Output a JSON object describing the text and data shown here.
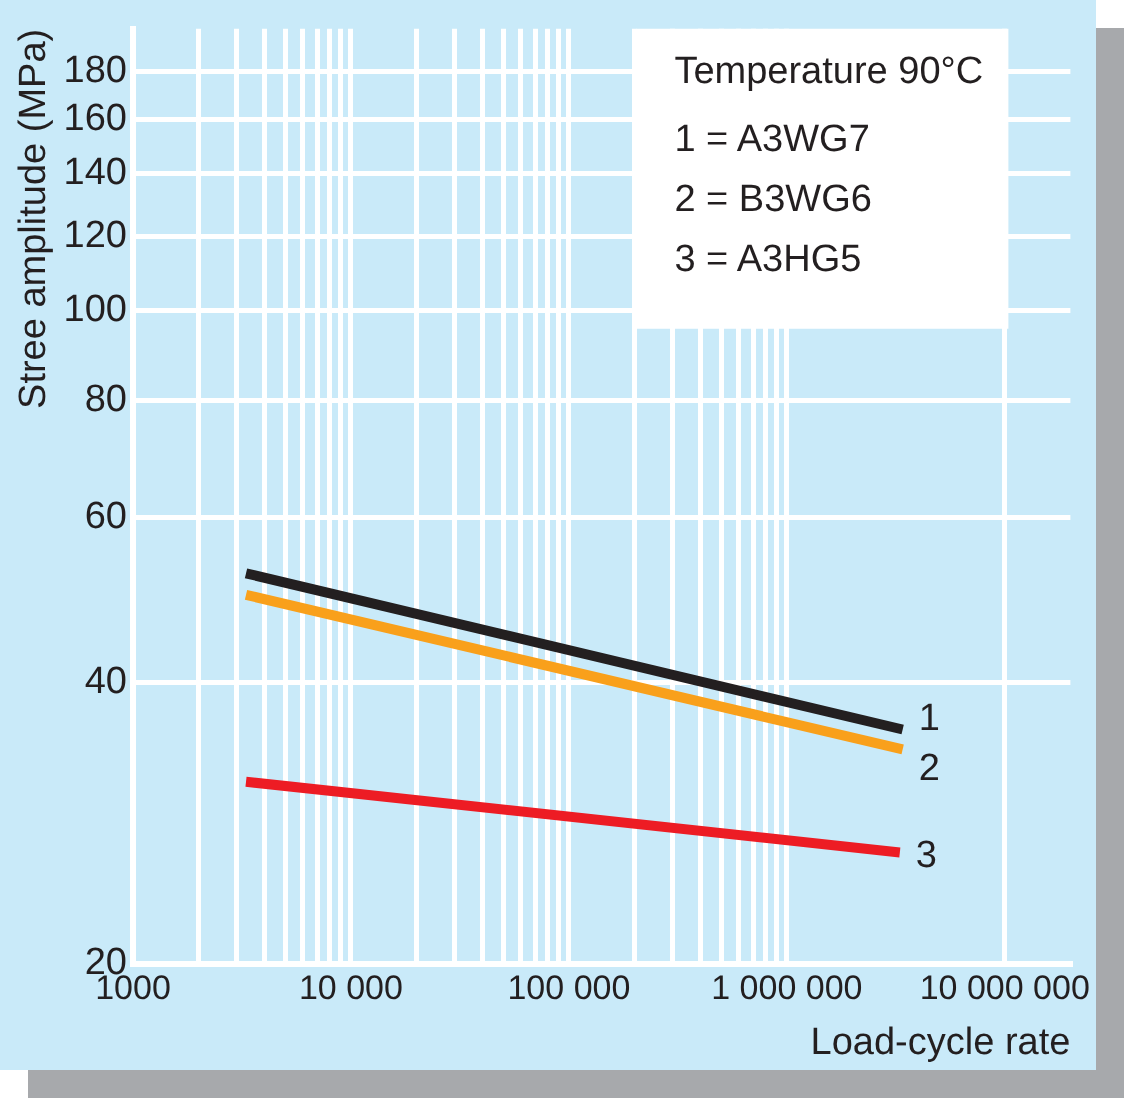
{
  "chart_data": {
    "type": "line",
    "xlabel": "Load-cycle rate",
    "ylabel": "Stree amplitude (MPa)",
    "annotations": [
      "Temperature 90°C",
      "1 = A3WG7",
      "2 = B3WG6",
      "3 = A3HG5"
    ],
    "log": "xy",
    "grid": true,
    "legend": false,
    "marker": "none",
    "line_style": "solid",
    "xlim": [
      1000,
      20000000
    ],
    "ylim": [
      20,
      200
    ],
    "xticks": [
      1000,
      {
        "value": 2000,
        "label": null
      },
      {
        "value": 3000,
        "label": null
      },
      {
        "value": 4000,
        "label": null
      },
      {
        "value": 5000,
        "label": null
      },
      {
        "value": 6000,
        "label": null
      },
      {
        "value": 7000,
        "label": null
      },
      {
        "value": 8000,
        "label": null
      },
      {
        "value": 9000,
        "label": null
      },
      {
        "value": 10000,
        "label": "10 000"
      },
      {
        "value": 20000,
        "label": null
      },
      {
        "value": 30000,
        "label": null
      },
      {
        "value": 40000,
        "label": null
      },
      {
        "value": 50000,
        "label": null
      },
      {
        "value": 60000,
        "label": null
      },
      {
        "value": 70000,
        "label": null
      },
      {
        "value": 80000,
        "label": null
      },
      {
        "value": 90000,
        "label": null
      },
      {
        "value": 100000,
        "label": "100 000"
      },
      {
        "value": 200000,
        "label": null
      },
      {
        "value": 300000,
        "label": null
      },
      {
        "value": 400000,
        "label": null
      },
      {
        "value": 500000,
        "label": null
      },
      {
        "value": 600000,
        "label": null
      },
      {
        "value": 700000,
        "label": null
      },
      {
        "value": 800000,
        "label": null
      },
      {
        "value": 900000,
        "label": null
      },
      {
        "value": 1000000,
        "label": "1 000 000"
      },
      {
        "value": 10000000,
        "label": "10 000 000"
      }
    ],
    "yticks": [
      20,
      40,
      60,
      80,
      100,
      120,
      140,
      160,
      180
    ],
    "series": [
      {
        "name": "1",
        "color": "#231f20",
        "x": [
          3300,
          3400000
        ],
        "values": [
          52.3,
          35.6
        ]
      },
      {
        "name": "2",
        "color": "#f9a01b",
        "x": [
          3300,
          3400000
        ],
        "values": [
          49.6,
          33.9
        ]
      },
      {
        "name": "3",
        "color": "#ed1c24",
        "x": [
          3300,
          3300000
        ],
        "values": [
          31.3,
          26.3
        ]
      }
    ]
  }
}
